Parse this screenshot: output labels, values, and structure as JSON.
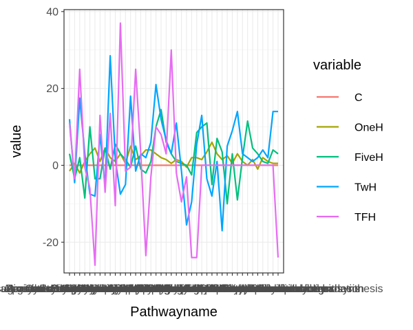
{
  "chart_data": {
    "type": "line",
    "xlabel": "Pathwayname",
    "ylabel": "value",
    "ylim": [
      -28,
      40.5
    ],
    "yticks": [
      -20,
      0,
      20,
      40
    ],
    "grid": true,
    "legend": {
      "title": "variable",
      "position": "right"
    },
    "categories": [
      "Alanine aspartate and glutamate metabolism",
      "Amino sugar and nucleotide sugar metabolism",
      "Aminoacyl tRNA biosynthesis",
      "Arginine and proline metabolism",
      "Ascorbate and aldarate metabolism",
      "beta-Alanine metabolism",
      "Biosynthesis of unsaturated fatty acids",
      "Butanoate metabolism",
      "Citrate cycle (TCA cycle)",
      "Cysteine and methionine metabolism",
      "Fatty acid biosynthesis",
      "Fructose and mannose metabolism",
      "Galactose metabolism",
      "Glutathione metabolism",
      "Glycerolipid metabolism",
      "Glycerophospholipid metabolism",
      "Glycine serine and threonine metabolism",
      "Glycolysis or Gluconeogenesis",
      "Glyoxylate and dicarboxylate metabolism",
      "Histidine metabolism",
      "Inositol phosphate metabolism",
      "Lysine degradation",
      "Methane metabolism",
      "Nicotinate and nicotinamide metabolism",
      "Nitrogen metabolism",
      "Pantothenate and CoA biosynthesis",
      "Pentose and glucuronate interconversions",
      "Pentose phosphate pathway",
      "Phenylalanine metabolism",
      "Phenylalanine tyrosine and tryptophan biosynthesis",
      "Propanoate metabolism",
      "Pyruvate metabolism",
      "Starch and sucrose metabolism",
      "Sulfur metabolism",
      "Tryptophan metabolism",
      "Tyrosine metabolism",
      "Ubiquinone and other terpenoid-quinone biosynthesis",
      "Valine leucine and isoleucine biosynthesis",
      "Valine leucine and isoleucine degradation",
      "Vitamin B6 metabolism",
      "Fatty acid metabolism",
      "Galactose metabolism"
    ],
    "series": [
      {
        "name": "C",
        "color": "#F8766D",
        "values": [
          0,
          0,
          0,
          0,
          0,
          0,
          0,
          0,
          0,
          0,
          0,
          0,
          0,
          0,
          0,
          0,
          0,
          0,
          0,
          0,
          0,
          0,
          0,
          0,
          0,
          0,
          0,
          0,
          0,
          0,
          0,
          0,
          0,
          0,
          0,
          0,
          0,
          0,
          0,
          0,
          0,
          0
        ]
      },
      {
        "name": "OneH",
        "color": "#A3A500",
        "values": [
          -1.5,
          0.5,
          -2,
          1,
          3,
          4.5,
          1,
          4.5,
          2,
          1,
          3,
          0.5,
          5,
          1.5,
          2.5,
          4,
          4,
          3,
          2,
          1.5,
          0.5,
          1.5,
          1,
          -0.5,
          2,
          2,
          1.5,
          3.5,
          6,
          3,
          1.5,
          2.5,
          0.5,
          3,
          1,
          0,
          1.5,
          -1,
          2,
          1,
          0.5,
          0.5
        ]
      },
      {
        "name": "FiveH",
        "color": "#00BF7D",
        "values": [
          3,
          -3.5,
          2,
          -8.5,
          10,
          -3.5,
          -3.5,
          4.5,
          -1,
          5.5,
          3,
          1.5,
          -0.5,
          5,
          -1,
          -2,
          1,
          10,
          14.5,
          6,
          3,
          1,
          0.5,
          0,
          -2.5,
          8.5,
          10,
          11,
          -5,
          7,
          3.5,
          -10,
          3,
          -9,
          2,
          11.5,
          4.5,
          3,
          1,
          0.5,
          4,
          3
        ]
      },
      {
        "name": "TwH",
        "color": "#00A5FF",
        "values": [
          12,
          -4.5,
          17.5,
          3,
          -7.5,
          -8,
          8,
          -5.5,
          28.5,
          1.5,
          -7.5,
          -5,
          18,
          -1.5,
          3,
          2,
          6,
          21,
          12,
          6.5,
          3,
          11,
          -1.5,
          -15.5,
          -9.5,
          5.5,
          13,
          -3.5,
          -8,
          1,
          -17,
          5,
          9,
          14,
          3,
          2,
          1,
          2,
          4,
          2,
          14,
          14
        ]
      },
      {
        "name": "TFH",
        "color": "#E76BF3",
        "values": [
          11,
          -3.5,
          25,
          -0.5,
          -6,
          -26,
          13,
          -7,
          13.5,
          -10.5,
          37,
          -1.5,
          -0.5,
          25,
          3,
          -23.5,
          -3,
          10,
          8,
          3,
          30,
          -2,
          -9.5,
          -3,
          -24,
          -24,
          0,
          0,
          0,
          0,
          0,
          0,
          0,
          0,
          0,
          0,
          0,
          0,
          0,
          0,
          0,
          -24
        ]
      }
    ]
  },
  "chart_data_note_free": true
}
